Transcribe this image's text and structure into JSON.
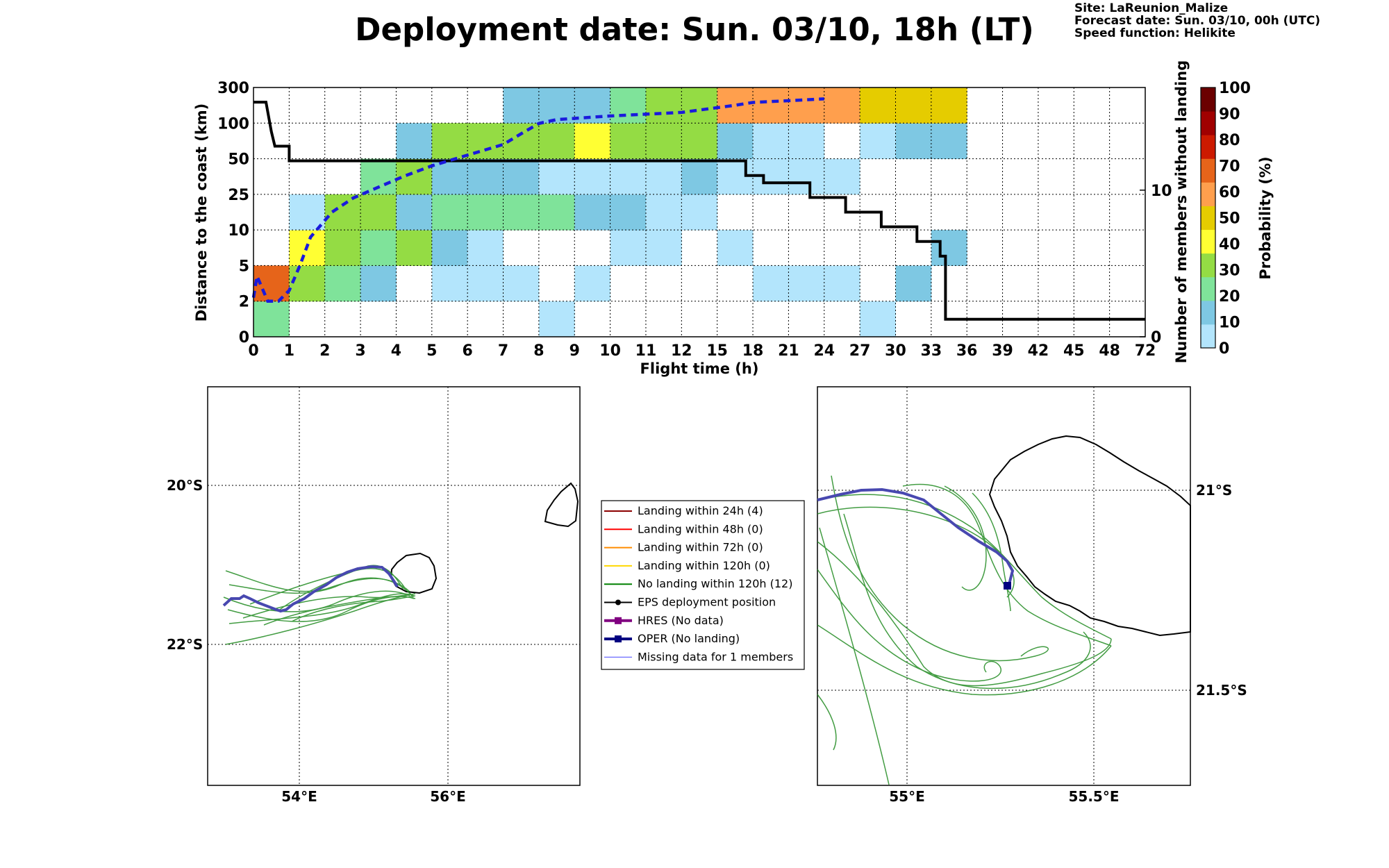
{
  "header": {
    "title": "Deployment date: Sun. 03/10, 18h (LT)",
    "site": "Site: LaReunion_Malize",
    "forecast": "Forecast date: Sun. 03/10, 00h (UTC)",
    "speed": "Speed function: Helikite"
  },
  "chart_data": {
    "type": "heatmap",
    "xlabel": "Flight time (h)",
    "ylabel": "Distance to the coast (km)",
    "y2label": "Number of members without landing",
    "x_ticks": [
      "0",
      "1",
      "2",
      "3",
      "4",
      "5",
      "6",
      "7",
      "8",
      "9",
      "10",
      "11",
      "12",
      "15",
      "18",
      "21",
      "24",
      "27",
      "30",
      "33",
      "36",
      "39",
      "42",
      "45",
      "48",
      "72"
    ],
    "y_ticks": [
      "0",
      "2",
      "5",
      "10",
      "25",
      "50",
      "100",
      "300"
    ],
    "y2_ticks": [
      "0",
      "10"
    ],
    "y2lim": [
      0,
      17
    ],
    "grid": true,
    "colorbar": {
      "label": "Probability (%)",
      "ticks": [
        "0",
        "10",
        "20",
        "30",
        "40",
        "50",
        "60",
        "70",
        "80",
        "90",
        "100"
      ],
      "colors": [
        "#b3e5fc",
        "#7ec8e3",
        "#7fe39a",
        "#94dc44",
        "#ffff33",
        "#e5cc00",
        "#ff9f4d",
        "#e6641a",
        "#cc1a00",
        "#a00000",
        "#6b0000"
      ]
    },
    "cells": [
      {
        "x": 0,
        "y": 0,
        "p": 20
      },
      {
        "x": 0,
        "y": 1,
        "p": 70
      },
      {
        "x": 1,
        "y": 1,
        "p": 30
      },
      {
        "x": 1,
        "y": 2,
        "p": 40
      },
      {
        "x": 1,
        "y": 3,
        "p": 0
      },
      {
        "x": 2,
        "y": 1,
        "p": 20
      },
      {
        "x": 2,
        "y": 2,
        "p": 30
      },
      {
        "x": 2,
        "y": 3,
        "p": 30
      },
      {
        "x": 3,
        "y": 1,
        "p": 10
      },
      {
        "x": 3,
        "y": 2,
        "p": 20
      },
      {
        "x": 3,
        "y": 3,
        "p": 30
      },
      {
        "x": 3,
        "y": 4,
        "p": 20
      },
      {
        "x": 4,
        "y": 2,
        "p": 30
      },
      {
        "x": 4,
        "y": 3,
        "p": 10
      },
      {
        "x": 4,
        "y": 4,
        "p": 30
      },
      {
        "x": 4,
        "y": 5,
        "p": 10
      },
      {
        "x": 5,
        "y": 1,
        "p": 0
      },
      {
        "x": 5,
        "y": 2,
        "p": 10
      },
      {
        "x": 5,
        "y": 3,
        "p": 20
      },
      {
        "x": 5,
        "y": 4,
        "p": 10
      },
      {
        "x": 5,
        "y": 5,
        "p": 30
      },
      {
        "x": 6,
        "y": 1,
        "p": 0
      },
      {
        "x": 6,
        "y": 2,
        "p": 0
      },
      {
        "x": 6,
        "y": 3,
        "p": 20
      },
      {
        "x": 6,
        "y": 4,
        "p": 10
      },
      {
        "x": 6,
        "y": 5,
        "p": 30
      },
      {
        "x": 7,
        "y": 1,
        "p": 0
      },
      {
        "x": 7,
        "y": 3,
        "p": 20
      },
      {
        "x": 7,
        "y": 4,
        "p": 10
      },
      {
        "x": 7,
        "y": 5,
        "p": 30
      },
      {
        "x": 7,
        "y": 6,
        "p": 10
      },
      {
        "x": 8,
        "y": 0,
        "p": 0
      },
      {
        "x": 8,
        "y": 3,
        "p": 20
      },
      {
        "x": 8,
        "y": 4,
        "p": 0
      },
      {
        "x": 8,
        "y": 5,
        "p": 30
      },
      {
        "x": 8,
        "y": 6,
        "p": 10
      },
      {
        "x": 9,
        "y": 1,
        "p": 0
      },
      {
        "x": 9,
        "y": 3,
        "p": 10
      },
      {
        "x": 9,
        "y": 4,
        "p": 0
      },
      {
        "x": 9,
        "y": 5,
        "p": 40
      },
      {
        "x": 9,
        "y": 6,
        "p": 10
      },
      {
        "x": 10,
        "y": 2,
        "p": 0
      },
      {
        "x": 10,
        "y": 3,
        "p": 10
      },
      {
        "x": 10,
        "y": 4,
        "p": 0
      },
      {
        "x": 10,
        "y": 5,
        "p": 30
      },
      {
        "x": 10,
        "y": 6,
        "p": 20
      },
      {
        "x": 11,
        "y": 2,
        "p": 0
      },
      {
        "x": 11,
        "y": 3,
        "p": 0
      },
      {
        "x": 11,
        "y": 4,
        "p": 0
      },
      {
        "x": 11,
        "y": 5,
        "p": 30
      },
      {
        "x": 11,
        "y": 6,
        "p": 30
      },
      {
        "x": 12,
        "y": 3,
        "p": 0
      },
      {
        "x": 12,
        "y": 4,
        "p": 10
      },
      {
        "x": 12,
        "y": 5,
        "p": 30
      },
      {
        "x": 12,
        "y": 6,
        "p": 30
      },
      {
        "x": 13,
        "y": 2,
        "p": 0
      },
      {
        "x": 13,
        "y": 4,
        "p": 0
      },
      {
        "x": 13,
        "y": 5,
        "p": 10
      },
      {
        "x": 13,
        "y": 6,
        "p": 60
      },
      {
        "x": 14,
        "y": 1,
        "p": 0
      },
      {
        "x": 14,
        "y": 4,
        "p": 0
      },
      {
        "x": 14,
        "y": 5,
        "p": 0
      },
      {
        "x": 14,
        "y": 6,
        "p": 60
      },
      {
        "x": 15,
        "y": 1,
        "p": 0
      },
      {
        "x": 15,
        "y": 4,
        "p": 0
      },
      {
        "x": 15,
        "y": 5,
        "p": 0
      },
      {
        "x": 15,
        "y": 6,
        "p": 60
      },
      {
        "x": 16,
        "y": 1,
        "p": 0
      },
      {
        "x": 16,
        "y": 4,
        "p": 0
      },
      {
        "x": 16,
        "y": 6,
        "p": 60
      },
      {
        "x": 17,
        "y": 0,
        "p": 0
      },
      {
        "x": 17,
        "y": 5,
        "p": 0
      },
      {
        "x": 17,
        "y": 6,
        "p": 50
      },
      {
        "x": 18,
        "y": 1,
        "p": 10
      },
      {
        "x": 18,
        "y": 5,
        "p": 10
      },
      {
        "x": 18,
        "y": 6,
        "p": 50
      },
      {
        "x": 19,
        "y": 2,
        "p": 10
      },
      {
        "x": 19,
        "y": 5,
        "p": 10
      },
      {
        "x": 19,
        "y": 6,
        "p": 50
      }
    ],
    "series": [
      {
        "name": "Number of members without landing",
        "style": "black-step",
        "points": [
          [
            0,
            16
          ],
          [
            0.35,
            16
          ],
          [
            0.5,
            14
          ],
          [
            0.6,
            13
          ],
          [
            1,
            13
          ],
          [
            1,
            12
          ],
          [
            13.8,
            12
          ],
          [
            13.8,
            11
          ],
          [
            14.3,
            11
          ],
          [
            14.3,
            10.5
          ],
          [
            15.6,
            10.5
          ],
          [
            15.6,
            9.5
          ],
          [
            16.6,
            9.5
          ],
          [
            16.6,
            8.5
          ],
          [
            17.6,
            8.5
          ],
          [
            17.6,
            7.5
          ],
          [
            18.6,
            7.5
          ],
          [
            18.6,
            6.5
          ],
          [
            19.25,
            6.5
          ],
          [
            19.25,
            5.5
          ],
          [
            19.4,
            5.5
          ],
          [
            19.4,
            1.2
          ],
          [
            25,
            1.2
          ]
        ]
      },
      {
        "style": "blue-dashed",
        "points": [
          [
            0,
            1.1
          ],
          [
            0.1,
            1.7
          ],
          [
            0.4,
            1.0
          ],
          [
            0.7,
            1.0
          ],
          [
            1,
            1.3
          ],
          [
            1.3,
            2.0
          ],
          [
            1.6,
            2.8
          ],
          [
            2.2,
            3.5
          ],
          [
            2.8,
            3.9
          ],
          [
            3.5,
            4.2
          ],
          [
            4.2,
            4.5
          ],
          [
            5,
            4.8
          ],
          [
            6,
            5.1
          ],
          [
            7,
            5.4
          ],
          [
            7.5,
            5.7
          ],
          [
            8,
            5.99
          ],
          [
            8.5,
            6.1
          ],
          [
            10,
            6.2
          ],
          [
            12,
            6.3
          ],
          [
            13.5,
            6.5
          ],
          [
            14,
            6.58
          ],
          [
            15,
            6.63
          ],
          [
            16,
            6.68
          ]
        ]
      }
    ]
  },
  "maps": {
    "left": {
      "lat_labels": [
        "20°S",
        "22°S"
      ],
      "lon_labels": [
        "54°E",
        "56°E"
      ]
    },
    "right": {
      "lat_labels": [
        "21°S",
        "21.5°S"
      ],
      "lon_labels": [
        "55°E",
        "55.5°E"
      ]
    }
  },
  "legend": [
    {
      "label": "Landing within 24h (4)",
      "color": "#8b0000",
      "kind": "line"
    },
    {
      "label": "Landing within 48h (0)",
      "color": "#ff0000",
      "kind": "line"
    },
    {
      "label": "Landing within 72h (0)",
      "color": "#ff8c00",
      "kind": "line"
    },
    {
      "label": "Landing within 120h (0)",
      "color": "#ffd700",
      "kind": "line"
    },
    {
      "label": "No landing within 120h (12)",
      "color": "#008000",
      "kind": "line"
    },
    {
      "label": "EPS deployment position",
      "color": "#000000",
      "kind": "dot"
    },
    {
      "label": "HRES (No data)",
      "color": "#800080",
      "kind": "square"
    },
    {
      "label": "OPER (No landing)",
      "color": "#000080",
      "kind": "square"
    },
    {
      "label": "Missing data for 1 members",
      "color": "#6a6aff",
      "kind": "thin"
    }
  ]
}
